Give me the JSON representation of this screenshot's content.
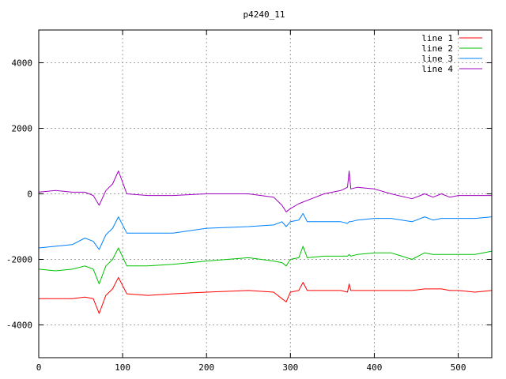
{
  "chart_data": {
    "type": "line",
    "title": "p4240_11",
    "xlabel": "",
    "ylabel": "",
    "xlim": [
      0,
      540
    ],
    "ylim": [
      -5000,
      5000
    ],
    "x_ticks": [
      0,
      100,
      200,
      300,
      400,
      500
    ],
    "y_ticks": [
      -4000,
      -2000,
      0,
      2000,
      4000
    ],
    "grid": true,
    "legend_position": "top-right",
    "x": [
      0,
      20,
      40,
      55,
      65,
      72,
      80,
      88,
      95,
      105,
      130,
      160,
      200,
      250,
      280,
      290,
      295,
      300,
      310,
      315,
      320,
      340,
      360,
      368,
      370,
      372,
      380,
      400,
      420,
      445,
      460,
      470,
      480,
      490,
      500,
      520,
      540
    ],
    "series": [
      {
        "name": "line 1",
        "color": "#ff0000",
        "values": [
          -3200,
          -3200,
          -3200,
          -3150,
          -3200,
          -3650,
          -3100,
          -2900,
          -2550,
          -3050,
          -3100,
          -3050,
          -3000,
          -2950,
          -3000,
          -3200,
          -3300,
          -3000,
          -2950,
          -2700,
          -2950,
          -2950,
          -2950,
          -3000,
          -2750,
          -2950,
          -2950,
          -2950,
          -2950,
          -2950,
          -2900,
          -2900,
          -2900,
          -2950,
          -2950,
          -3000,
          -2950
        ]
      },
      {
        "name": "line 2",
        "color": "#00c000",
        "values": [
          -2300,
          -2350,
          -2300,
          -2200,
          -2300,
          -2750,
          -2200,
          -2000,
          -1650,
          -2200,
          -2200,
          -2150,
          -2050,
          -1950,
          -2050,
          -2100,
          -2200,
          -2000,
          -1950,
          -1600,
          -1950,
          -1900,
          -1900,
          -1900,
          -1850,
          -1900,
          -1850,
          -1800,
          -1800,
          -2000,
          -1800,
          -1850,
          -1850,
          -1850,
          -1850,
          -1850,
          -1750
        ]
      },
      {
        "name": "line 3",
        "color": "#0080ff",
        "values": [
          -1650,
          -1600,
          -1550,
          -1350,
          -1450,
          -1700,
          -1250,
          -1050,
          -700,
          -1200,
          -1200,
          -1200,
          -1050,
          -1000,
          -950,
          -850,
          -1000,
          -850,
          -800,
          -600,
          -850,
          -850,
          -850,
          -900,
          -850,
          -850,
          -800,
          -750,
          -750,
          -850,
          -700,
          -800,
          -750,
          -750,
          -750,
          -750,
          -700
        ]
      },
      {
        "name": "line 4",
        "color": "#a000c0",
        "values": [
          50,
          100,
          50,
          50,
          -50,
          -350,
          100,
          300,
          700,
          0,
          -50,
          -50,
          0,
          0,
          -100,
          -350,
          -550,
          -450,
          -300,
          -250,
          -200,
          0,
          100,
          200,
          700,
          150,
          200,
          150,
          0,
          -150,
          0,
          -100,
          0,
          -100,
          -50,
          -50,
          -50
        ]
      }
    ]
  }
}
